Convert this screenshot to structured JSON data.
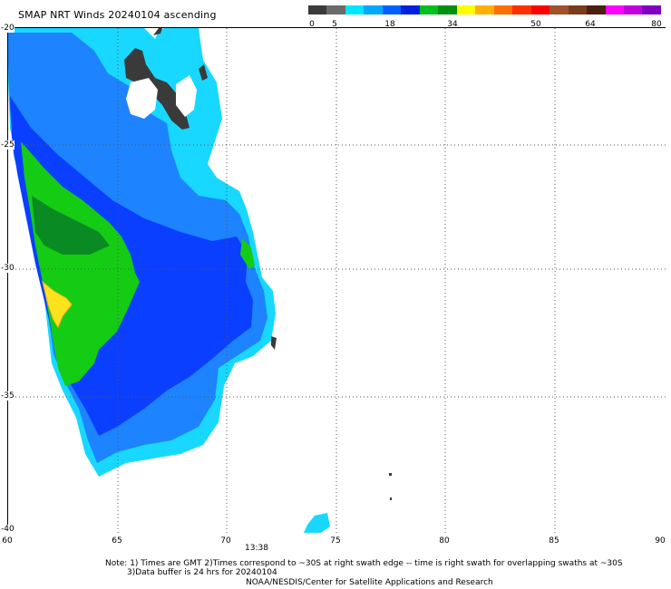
{
  "title": "SMAP NRT Winds 20240104 ascending",
  "colorbar": {
    "ticks": [
      "0",
      "5",
      "18",
      "34",
      "50",
      "64",
      "80"
    ],
    "segments": [
      {
        "color": "#3a3a3a"
      },
      {
        "color": "#6a6a6a"
      },
      {
        "color": "#00e5ff"
      },
      {
        "color": "#00a8ff"
      },
      {
        "color": "#0060ff"
      },
      {
        "color": "#0020e0"
      },
      {
        "color": "#00c020"
      },
      {
        "color": "#009010"
      },
      {
        "color": "#ffff00"
      },
      {
        "color": "#ffb000"
      },
      {
        "color": "#ff7000"
      },
      {
        "color": "#ff3000"
      },
      {
        "color": "#ff0000"
      },
      {
        "color": "#a0522d"
      },
      {
        "color": "#7a3c1c"
      },
      {
        "color": "#4a2010"
      },
      {
        "color": "#ff00ff"
      },
      {
        "color": "#c000e0"
      },
      {
        "color": "#8000c0"
      }
    ]
  },
  "map": {
    "lat_labels": [
      "-20",
      "-25",
      "-30",
      "-35",
      "-40"
    ],
    "lon_labels": [
      "60",
      "65",
      "70",
      "75",
      "80",
      "85",
      "90"
    ],
    "time_label": "13:38",
    "colors": {
      "light_cyan": "#18d8ff",
      "mid_blue": "#1d83ff",
      "deep_blue": "#0b3fff",
      "green": "#14cc14",
      "dark_green": "#0a8a22",
      "yellow": "#ffe21e",
      "orange": "#ffb020",
      "no_data_gray": "#3a3a3a",
      "gridline": "#555555"
    }
  },
  "notes": {
    "line1": "Note: 1) Times are GMT 2)Times correspond to ~30S at right swath edge -- time is right swath for overlapping swaths at ~30S",
    "line2": "3)Data buffer is 24 hrs for 20240104",
    "line3": "NOAA/NESDIS/Center for Satellite Applications and Research"
  }
}
